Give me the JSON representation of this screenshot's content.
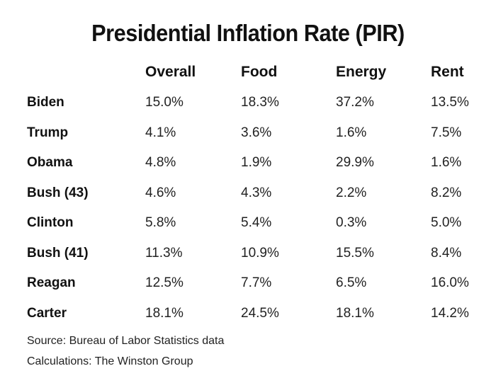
{
  "chart_data": {
    "type": "table",
    "title": "Presidential Inflation Rate (PIR)",
    "columns": [
      "Overall",
      "Food",
      "Energy",
      "Rent"
    ],
    "rows": [
      {
        "label": "Biden",
        "values": [
          "15.0%",
          "18.3%",
          "37.2%",
          "13.5%"
        ]
      },
      {
        "label": "Trump",
        "values": [
          "4.1%",
          "3.6%",
          "1.6%",
          "7.5%"
        ]
      },
      {
        "label": "Obama",
        "values": [
          "4.8%",
          "1.9%",
          "29.9%",
          "1.6%"
        ]
      },
      {
        "label": "Bush  (43)",
        "values": [
          "4.6%",
          "4.3%",
          "2.2%",
          "8.2%"
        ]
      },
      {
        "label": "Clinton",
        "values": [
          "5.8%",
          "5.4%",
          "0.3%",
          "5.0%"
        ]
      },
      {
        "label": "Bush (41)",
        "values": [
          "11.3%",
          "10.9%",
          "15.5%",
          "8.4%"
        ]
      },
      {
        "label": "Reagan",
        "values": [
          "12.5%",
          "7.7%",
          "6.5%",
          "16.0%"
        ]
      },
      {
        "label": "Carter",
        "values": [
          "18.1%",
          "24.5%",
          "18.1%",
          "14.2%"
        ]
      }
    ]
  },
  "footnotes": {
    "source": "Source: Bureau of Labor Statistics data",
    "calculations": "Calculations: The Winston Group"
  }
}
